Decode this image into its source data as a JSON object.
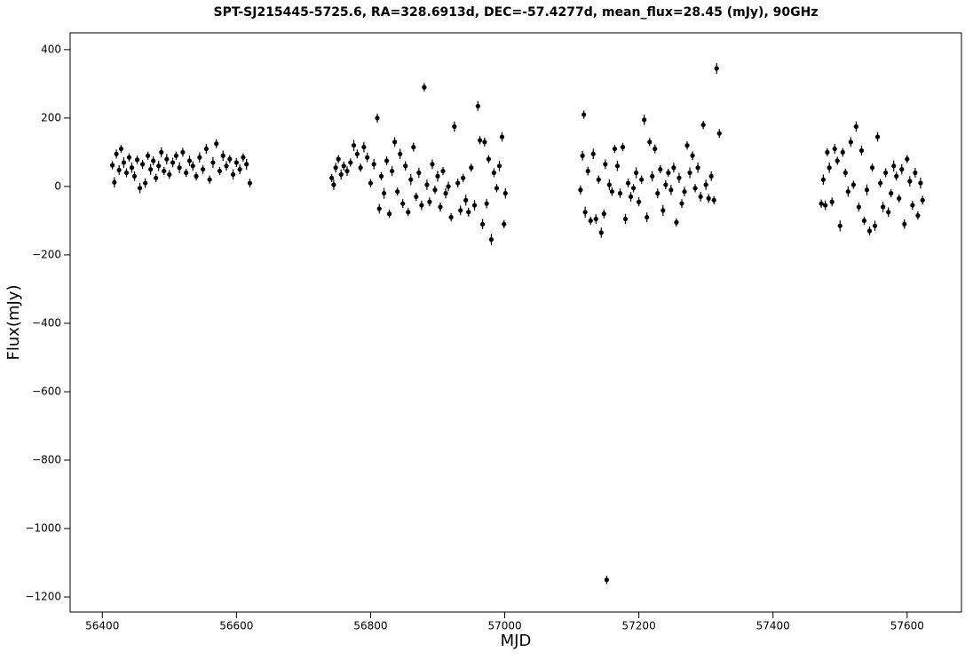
{
  "chart_data": {
    "type": "errorbar",
    "title": "SPT-SJ215445-5725.6, RA=328.6913d, DEC=-57.4277d, mean_flux=28.45 (mJy), 90GHz",
    "x_label": "MJD",
    "y_label": "Flux(mJy)",
    "color": "#000000",
    "xlim": [
      56352,
      57681
    ],
    "ylim": [
      -1244,
      449
    ],
    "xticks": [
      56400,
      56600,
      56800,
      57000,
      57200,
      57400,
      57600
    ],
    "yticks": [
      {
        "value": -1200,
        "label": "−1200"
      },
      {
        "value": -1000,
        "label": "−1000"
      },
      {
        "value": -800,
        "label": "−800"
      },
      {
        "value": -600,
        "label": "−600"
      },
      {
        "value": -400,
        "label": "−400"
      },
      {
        "value": -200,
        "label": "−200"
      },
      0,
      200,
      400
    ],
    "x": [
      56415,
      56418,
      56421,
      56425,
      56428,
      56432,
      56436,
      56440,
      56444,
      56448,
      56452,
      56456,
      56460,
      56464,
      56468,
      56472,
      56476,
      56480,
      56484,
      56488,
      56492,
      56496,
      56500,
      56505,
      56510,
      56515,
      56520,
      56525,
      56530,
      56535,
      56540,
      56545,
      56550,
      56555,
      56560,
      56565,
      56570,
      56575,
      56580,
      56585,
      56590,
      56595,
      56600,
      56605,
      56610,
      56615,
      56620,
      56742,
      56745,
      56748,
      56752,
      56756,
      56760,
      56765,
      56770,
      56775,
      56780,
      56785,
      56790,
      56795,
      56800,
      56805,
      56810,
      56813,
      56816,
      56820,
      56824,
      56828,
      56832,
      56836,
      56840,
      56844,
      56848,
      56852,
      56856,
      56860,
      56864,
      56868,
      56872,
      56876,
      56880,
      56884,
      56888,
      56892,
      56896,
      56900,
      56904,
      56908,
      56912,
      56916,
      56920,
      56925,
      56930,
      56934,
      56938,
      56942,
      56946,
      56950,
      56955,
      56960,
      56963,
      56967,
      56970,
      56973,
      56976,
      56980,
      56984,
      56988,
      56992,
      56996,
      56999,
      57001,
      57113,
      57116,
      57118,
      57120,
      57124,
      57128,
      57132,
      57136,
      57140,
      57144,
      57148,
      57150,
      57152,
      57156,
      57160,
      57164,
      57168,
      57172,
      57176,
      57180,
      57184,
      57188,
      57192,
      57196,
      57200,
      57204,
      57208,
      57212,
      57216,
      57220,
      57224,
      57228,
      57232,
      57236,
      57240,
      57244,
      57248,
      57252,
      57256,
      57260,
      57264,
      57268,
      57272,
      57276,
      57280,
      57284,
      57288,
      57292,
      57296,
      57300,
      57304,
      57308,
      57312,
      57316,
      57320,
      57472,
      57475,
      57478,
      57481,
      57484,
      57488,
      57492,
      57496,
      57500,
      57504,
      57508,
      57512,
      57516,
      57520,
      57524,
      57528,
      57532,
      57536,
      57540,
      57544,
      57548,
      57552,
      57556,
      57560,
      57564,
      57568,
      57572,
      57576,
      57580,
      57584,
      57588,
      57592,
      57596,
      57600,
      57604,
      57608,
      57612,
      57616,
      57620,
      57623
    ],
    "values": [
      62,
      12,
      95,
      48,
      110,
      70,
      40,
      85,
      55,
      30,
      78,
      -5,
      65,
      10,
      90,
      50,
      75,
      25,
      60,
      100,
      45,
      80,
      35,
      70,
      90,
      55,
      100,
      40,
      75,
      60,
      30,
      85,
      50,
      110,
      20,
      70,
      125,
      45,
      90,
      60,
      80,
      35,
      70,
      50,
      85,
      65,
      10,
      25,
      5,
      55,
      80,
      35,
      60,
      45,
      70,
      120,
      95,
      55,
      115,
      85,
      10,
      65,
      200,
      -65,
      30,
      -20,
      75,
      -80,
      45,
      130,
      -15,
      95,
      -50,
      60,
      -75,
      20,
      115,
      -30,
      40,
      -55,
      290,
      5,
      -45,
      65,
      -10,
      30,
      -60,
      45,
      -20,
      0,
      -90,
      175,
      10,
      -70,
      25,
      -40,
      -75,
      55,
      -55,
      235,
      135,
      -110,
      130,
      -50,
      80,
      -155,
      40,
      -5,
      60,
      145,
      -110,
      -20,
      -10,
      90,
      210,
      -75,
      45,
      -100,
      95,
      -95,
      20,
      -135,
      -80,
      65,
      -1150,
      5,
      -15,
      110,
      60,
      -20,
      115,
      -95,
      10,
      -30,
      -5,
      40,
      -45,
      20,
      195,
      -90,
      130,
      30,
      110,
      -20,
      50,
      -70,
      5,
      40,
      -10,
      55,
      -105,
      25,
      -50,
      -15,
      120,
      40,
      90,
      -5,
      55,
      -30,
      180,
      5,
      -35,
      30,
      -40,
      345,
      155,
      -50,
      20,
      -55,
      100,
      55,
      -45,
      110,
      75,
      -115,
      100,
      40,
      -15,
      130,
      5,
      175,
      -60,
      105,
      -100,
      -10,
      -130,
      55,
      -115,
      145,
      10,
      -60,
      40,
      -75,
      -20,
      60,
      30,
      -35,
      50,
      -110,
      80,
      15,
      -55,
      40,
      -85,
      10,
      -40
    ],
    "errors": [
      12,
      15,
      13,
      14,
      12,
      16,
      13,
      12,
      15,
      14,
      12,
      15,
      13,
      14,
      12,
      16,
      13,
      12,
      15,
      14,
      12,
      15,
      13,
      14,
      12,
      16,
      13,
      12,
      15,
      14,
      12,
      15,
      13,
      14,
      12,
      16,
      13,
      12,
      15,
      14,
      12,
      15,
      13,
      14,
      12,
      16,
      13,
      12,
      15,
      14,
      12,
      15,
      13,
      14,
      12,
      16,
      13,
      12,
      15,
      14,
      12,
      15,
      13,
      14,
      12,
      16,
      13,
      12,
      15,
      14,
      12,
      15,
      13,
      14,
      12,
      16,
      13,
      12,
      15,
      14,
      12,
      15,
      13,
      14,
      12,
      16,
      13,
      12,
      15,
      14,
      12,
      15,
      13,
      14,
      12,
      16,
      13,
      12,
      15,
      14,
      12,
      15,
      13,
      14,
      12,
      16,
      13,
      12,
      15,
      14,
      12,
      15,
      13,
      14,
      12,
      16,
      13,
      12,
      15,
      14,
      12,
      15,
      13,
      14,
      12,
      16,
      13,
      12,
      15,
      14,
      12,
      15,
      13,
      14,
      12,
      16,
      13,
      12,
      15,
      14,
      12,
      15,
      13,
      14,
      12,
      16,
      13,
      12,
      15,
      14,
      12,
      15,
      13,
      14,
      12,
      16,
      13,
      12,
      15,
      14,
      12,
      15,
      13,
      14,
      12,
      16,
      13,
      12,
      15,
      14,
      12,
      15,
      13,
      14,
      12,
      16,
      13,
      12,
      15,
      14,
      12,
      15,
      13,
      14,
      12,
      16,
      13,
      12,
      15,
      14,
      12,
      15,
      13,
      14,
      12,
      16,
      13,
      12,
      15,
      14,
      12,
      15,
      13,
      14,
      12,
      16,
      13
    ]
  }
}
